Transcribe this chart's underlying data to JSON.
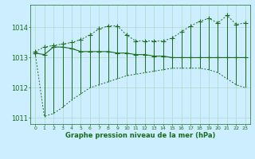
{
  "hours": [
    0,
    1,
    2,
    3,
    4,
    5,
    6,
    7,
    8,
    9,
    10,
    11,
    12,
    13,
    14,
    15,
    16,
    17,
    18,
    19,
    20,
    21,
    22,
    23
  ],
  "pressure_main": [
    1013.15,
    1013.1,
    1013.35,
    1013.35,
    1013.3,
    1013.2,
    1013.2,
    1013.2,
    1013.2,
    1013.15,
    1013.15,
    1013.1,
    1013.1,
    1013.05,
    1013.05,
    1013.0,
    1013.0,
    1013.0,
    1013.0,
    1013.0,
    1013.0,
    1013.0,
    1013.0,
    1013.0
  ],
  "pressure_max": [
    1013.2,
    1013.35,
    1013.4,
    1013.45,
    1013.5,
    1013.6,
    1013.75,
    1013.95,
    1014.05,
    1014.05,
    1013.75,
    1013.55,
    1013.55,
    1013.55,
    1013.55,
    1013.65,
    1013.85,
    1014.05,
    1014.2,
    1014.3,
    1014.15,
    1014.4,
    1014.1,
    1014.15
  ],
  "pressure_min": [
    1013.15,
    1011.05,
    1011.15,
    1011.35,
    1011.6,
    1011.8,
    1012.0,
    1012.1,
    1012.2,
    1012.3,
    1012.4,
    1012.45,
    1012.5,
    1012.55,
    1012.6,
    1012.65,
    1012.65,
    1012.65,
    1012.65,
    1012.6,
    1012.5,
    1012.3,
    1012.1,
    1012.0
  ],
  "ylim": [
    1010.8,
    1014.75
  ],
  "yticks": [
    1011,
    1012,
    1013,
    1014
  ],
  "xlabel": "Graphe pression niveau de la mer (hPa)",
  "bg_color": "#cceeff",
  "line_color": "#1a6b1a",
  "grid_color": "#b0d8cc",
  "grid_major_color": "#99ccbb"
}
